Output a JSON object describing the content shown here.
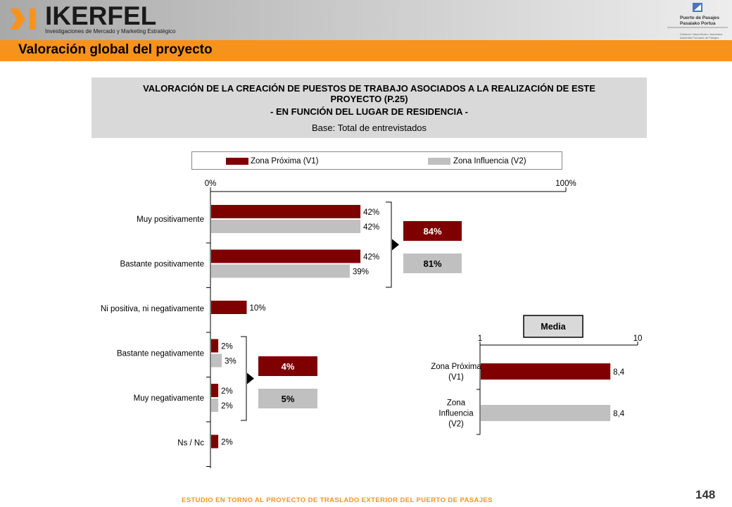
{
  "header": {
    "logo_name": "IKERFEL",
    "logo_tagline": "Investigaciones de Mercado y Marketing Estratégico",
    "port_name_line1": "Puerto de Pasajes",
    "port_name_line2": "Pasaiako Portua",
    "port_sub_line1": "Gobierno Vasco/Eusko Jaurlaritza",
    "port_sub_line2": "Autoridad Portuaria de Pasajes"
  },
  "page_title": "Valoración global del proyecto",
  "subtitle": {
    "line1": "VALORACIÓN DE LA CREACIÓN DE PUESTOS DE TRABAJO ASOCIADOS A LA REALIZACIÓN DE ESTE",
    "line2": "PROYECTO (P.25)",
    "line3": "- EN FUNCIÓN DEL LUGAR DE RESIDENCIA -",
    "base": "Base: Total de entrevistados"
  },
  "legend": {
    "v1": "Zona Próxima (V1)",
    "v2": "Zona Influencia (V2)"
  },
  "colors": {
    "v1": "#7f0000",
    "v2": "#c0c0c0",
    "accent": "#f7931d"
  },
  "chart_data": [
    {
      "type": "bar",
      "orientation": "horizontal",
      "categories": [
        "Muy positivamente",
        "Bastante positivamente",
        "Ni positiva, ni negativamente",
        "Bastante negativamente",
        "Muy negativamente",
        "Ns / Nc"
      ],
      "series": [
        {
          "name": "Zona Próxima (V1)",
          "values": [
            42,
            42,
            10,
            2,
            2,
            2
          ],
          "labels": [
            "42%",
            "42%",
            "10%",
            "2%",
            "2%",
            "2%"
          ]
        },
        {
          "name": "Zona Influencia (V2)",
          "values": [
            42,
            39,
            null,
            3,
            2,
            null
          ],
          "labels": [
            "42%",
            "39%",
            "",
            "3%",
            "2%",
            ""
          ]
        }
      ],
      "xlim": [
        0,
        100
      ],
      "tick_labels": [
        "0%",
        "100%"
      ],
      "groups": [
        {
          "v1_total": "84%",
          "v2_total": "81%"
        },
        {
          "v1_total": "4%",
          "v2_total": "5%"
        }
      ]
    },
    {
      "type": "bar",
      "orientation": "horizontal",
      "title": "Media",
      "categories": [
        "Zona Próxima (V1)",
        "Zona Influencia (V2)"
      ],
      "category_lines": [
        [
          "Zona Próxima",
          "(V1)"
        ],
        [
          "Zona",
          "Influencia",
          "(V2)"
        ]
      ],
      "values": [
        8.4,
        8.4
      ],
      "labels": [
        "8,4",
        "8,4"
      ],
      "xlim": [
        1,
        10
      ],
      "tick_labels": [
        "1",
        "10"
      ]
    }
  ],
  "footer": "ESTUDIO EN TORNO AL PROYECTO DE TRASLADO EXTERIOR DEL PUERTO DE PASAJES",
  "page_number": "148"
}
